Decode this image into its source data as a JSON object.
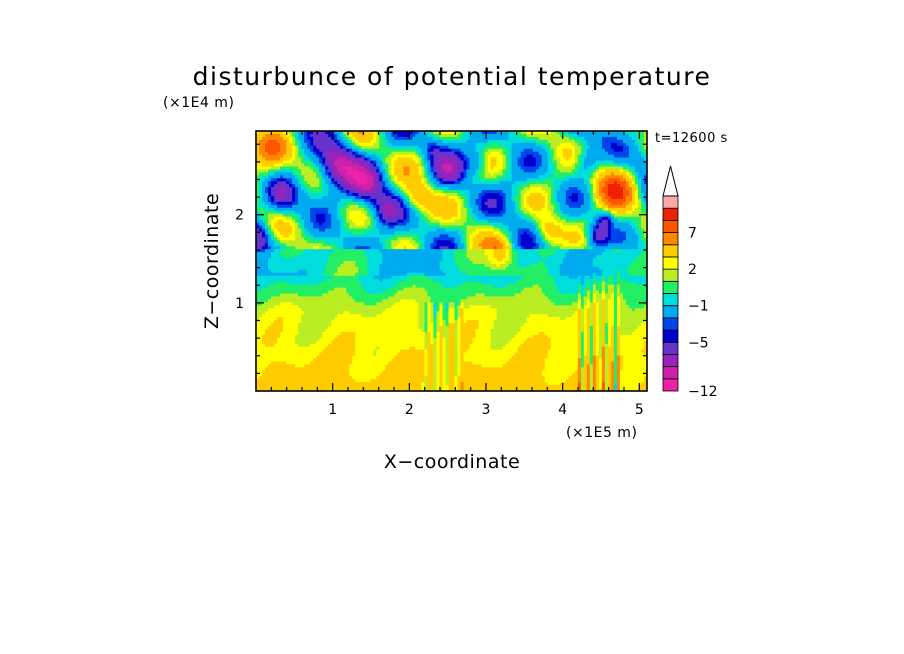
{
  "chart_data": {
    "type": "heatmap",
    "title": "disturbunce of potential temperature",
    "xlabel": "X−coordinate",
    "ylabel": "Z−coordinate",
    "x_unit": "(×1E5 m)",
    "y_unit": "(×1E4 m)",
    "time_label": "t=12600 s",
    "xlim": [
      0,
      5.1
    ],
    "ylim": [
      0,
      2.95
    ],
    "x_ticks": [
      1,
      2,
      3,
      4,
      5
    ],
    "y_ticks": [
      1,
      2
    ],
    "x_tick_labels": [
      "1",
      "2",
      "3",
      "4",
      "5"
    ],
    "y_tick_labels": [
      "1",
      "2"
    ],
    "colorbar": {
      "levels": [
        -12,
        -11,
        -9,
        -7,
        -5,
        -4,
        -3,
        -1,
        0,
        1,
        2,
        3,
        5,
        7,
        9,
        11
      ],
      "labeled_levels": [
        -12,
        -5,
        -1,
        2,
        7
      ],
      "labels": [
        "−12",
        "−5",
        "−1",
        "2",
        "7"
      ],
      "colors": [
        "#ee22aa",
        "#cc22aa",
        "#9922bb",
        "#6633cc",
        "#0000cc",
        "#0044ee",
        "#00aaee",
        "#00dddd",
        "#22ee66",
        "#bbee22",
        "#ffff00",
        "#ffcc00",
        "#ff8800",
        "#ff5500",
        "#ee2200",
        "#ffaaaa"
      ],
      "extend": "max"
    }
  }
}
